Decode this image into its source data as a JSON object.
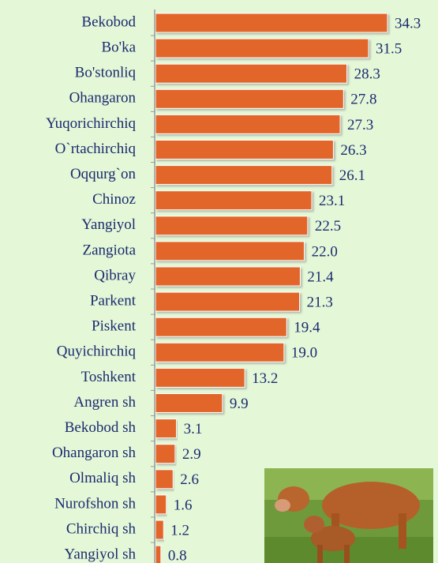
{
  "chart_data": {
    "type": "bar",
    "orientation": "horizontal",
    "categories": [
      "Bekobod",
      "Bo'ka",
      "Bo'stonliq",
      "Ohangaron",
      "Yuqorichirchiq",
      "O`rtachirchiq",
      "Oqqurg`on",
      "Chinoz",
      "Yangiyol",
      "Zangiota",
      "Qibray",
      "Parkent",
      "Piskent",
      "Quyichirchiq",
      "Toshkent",
      "Angren sh",
      "Bekobod sh",
      "Ohangaron sh",
      "Olmaliq sh",
      "Nurofshon sh",
      "Chirchiq sh",
      "Yangiyol sh"
    ],
    "values": [
      34.3,
      31.5,
      28.3,
      27.8,
      27.3,
      26.3,
      26.1,
      23.1,
      22.5,
      22.0,
      21.4,
      21.3,
      19.4,
      19.0,
      13.2,
      9.9,
      3.1,
      2.9,
      2.6,
      1.6,
      1.2,
      0.8
    ],
    "value_labels": [
      "34.3",
      "31.5",
      "28.3",
      "27.8",
      "27.3",
      "26.3",
      "26.1",
      "23.1",
      "22.5",
      "22.0",
      "21.4",
      "21.3",
      "19.4",
      "19.0",
      "13.2",
      "9.9",
      "3.1",
      "2.9",
      "2.6",
      "1.6",
      "1.2",
      "0.8"
    ],
    "color": "#e2662a"
  }
}
